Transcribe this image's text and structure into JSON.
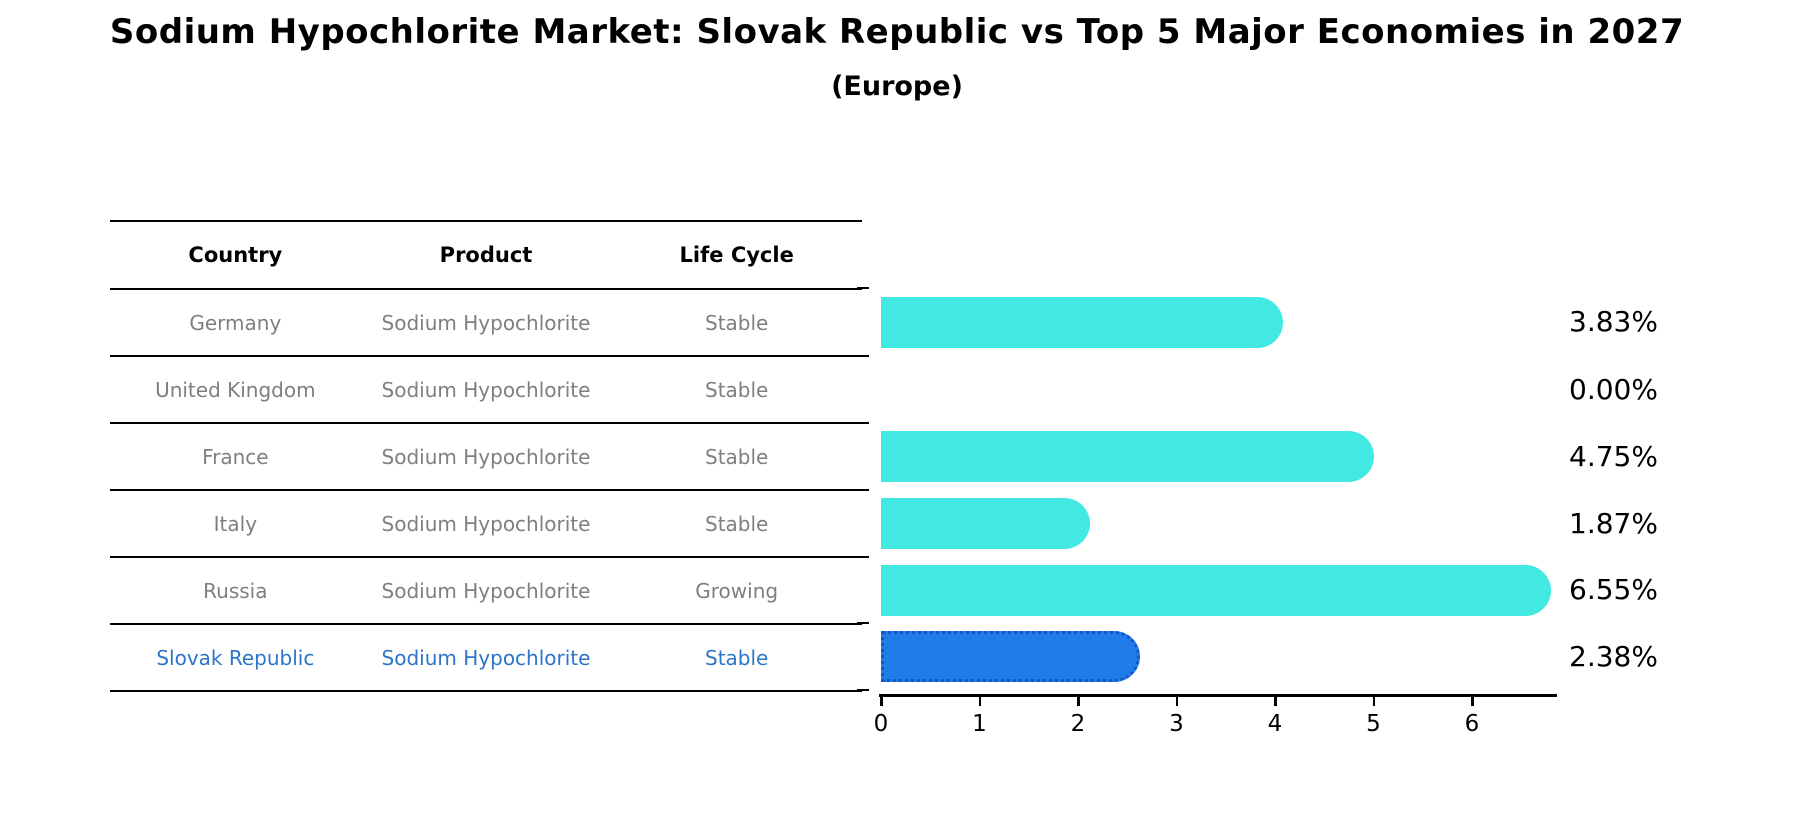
{
  "title": "Sodium Hypochlorite Market: Slovak Republic vs Top 5 Major Economies in 2027",
  "subtitle": "(Europe)",
  "table": {
    "headers": [
      "Country",
      "Product",
      "Life Cycle"
    ],
    "rows": [
      {
        "country": "Germany",
        "product": "Sodium Hypochlorite",
        "life_cycle": "Stable",
        "highlight": false
      },
      {
        "country": "United Kingdom",
        "product": "Sodium Hypochlorite",
        "life_cycle": "Stable",
        "highlight": false
      },
      {
        "country": "France",
        "product": "Sodium Hypochlorite",
        "life_cycle": "Stable",
        "highlight": false
      },
      {
        "country": "Italy",
        "product": "Sodium Hypochlorite",
        "life_cycle": "Stable",
        "highlight": false
      },
      {
        "country": "Russia",
        "product": "Sodium Hypochlorite",
        "life_cycle": "Growing",
        "highlight": false
      },
      {
        "country": "Slovak Republic",
        "product": "Sodium Hypochlorite",
        "life_cycle": "Stable",
        "highlight": true
      }
    ]
  },
  "chart_data": {
    "type": "bar",
    "orientation": "horizontal",
    "categories": [
      "Germany",
      "United Kingdom",
      "France",
      "Italy",
      "Russia",
      "Slovak Republic"
    ],
    "values": [
      3.83,
      0.0,
      4.75,
      1.87,
      6.55,
      2.38
    ],
    "value_labels": [
      "3.83%",
      "0.00%",
      "4.75%",
      "1.87%",
      "6.55%",
      "2.38%"
    ],
    "highlight_index": 5,
    "xticks": [
      "0",
      "1",
      "2",
      "3",
      "4",
      "5",
      "6"
    ],
    "xlim": [
      0,
      6.88
    ],
    "grid": false,
    "legend": "none",
    "bar_color": "#42e8e2",
    "highlight_bar_color": "#1f7ce8",
    "highlight_border_color": "#1057c8"
  },
  "colors": {
    "text_gray": "#7f7f7f",
    "highlight_text": "#2d75c8",
    "axis": "#000000"
  }
}
